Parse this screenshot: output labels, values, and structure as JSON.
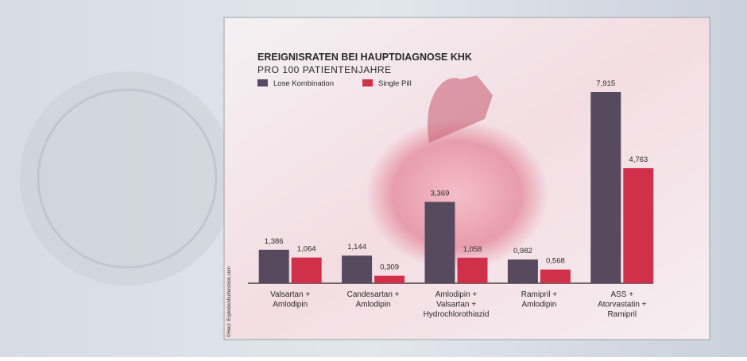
{
  "chart_data": {
    "type": "bar",
    "title": "EREIGNISRATEN BEI HAUPTDIAGNOSE KHK",
    "subtitle": "PRO 100 PATIENTENJAHRE",
    "credit": "©Herz: Explode/shutterstock.com",
    "categories": [
      [
        "Valsartan +",
        "Amlodipin"
      ],
      [
        "Candesartan +",
        "Amlodipin"
      ],
      [
        "Amlodipin +",
        "Valsartan +",
        "Hydrochlorothiazid"
      ],
      [
        "Ramipril +",
        "Amlodipin"
      ],
      [
        "ASS +",
        "Atorvastatin +",
        "Ramipril"
      ]
    ],
    "series": [
      {
        "name": "Lose Kombination",
        "color": "#574a5e",
        "values": [
          1.386,
          1.144,
          3.369,
          0.982,
          7.915
        ],
        "value_labels": [
          "1,386",
          "1,144",
          "3,369",
          "0,982",
          "7,915"
        ]
      },
      {
        "name": "Single Pill",
        "color": "#d0304a",
        "values": [
          1.064,
          0.309,
          1.058,
          0.568,
          4.763
        ],
        "value_labels": [
          "1,064",
          "0,309",
          "1,058",
          "0,568",
          "4,763"
        ]
      }
    ]
  }
}
